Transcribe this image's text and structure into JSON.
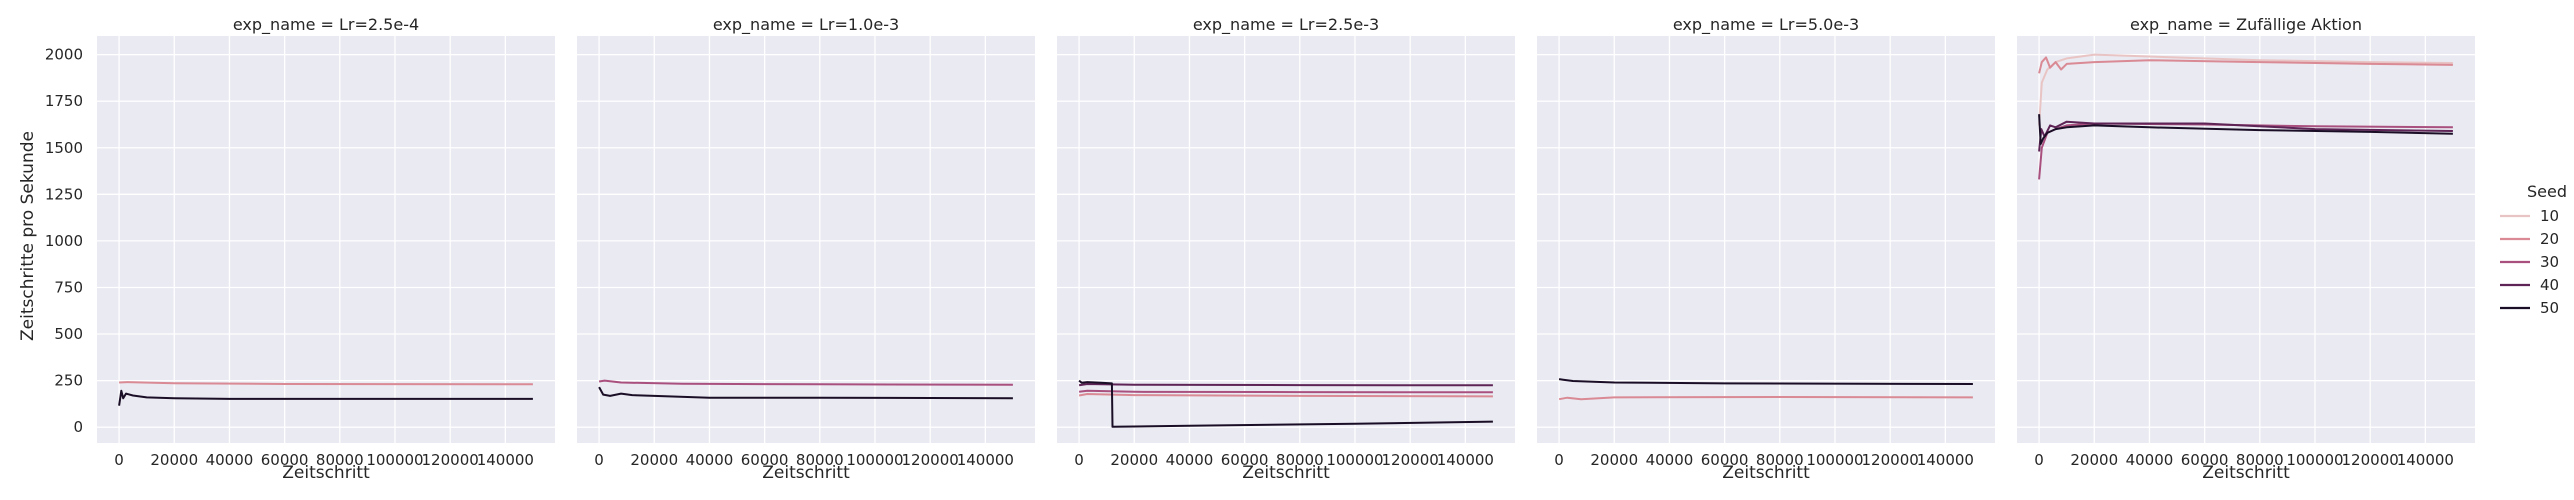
{
  "figure": {
    "ylabel": "Zeitschritte pro Sekunde",
    "xlabel": "Zeitschritt"
  },
  "legend": {
    "title": "Seed",
    "entries": [
      {
        "label": "10",
        "color": "#e9c4c4"
      },
      {
        "label": "20",
        "color": "#d98a94"
      },
      {
        "label": "30",
        "color": "#a9507f"
      },
      {
        "label": "40",
        "color": "#5e2456"
      },
      {
        "label": "50",
        "color": "#1a0e26"
      }
    ]
  },
  "chart_data": [
    {
      "type": "line",
      "title": "exp_name = Lr=2.5e-4",
      "xlabel": "Zeitschritt",
      "ylabel": "Zeitschritte pro Sekunde",
      "xlim": [
        -8000,
        158000
      ],
      "ylim": [
        -85,
        2100
      ],
      "xticks": [
        0,
        20000,
        40000,
        60000,
        80000,
        100000,
        120000,
        140000
      ],
      "yticks": [
        0,
        250,
        500,
        750,
        1000,
        1250,
        1500,
        1750,
        2000
      ],
      "series": [
        {
          "name": "20",
          "x": [
            0,
            3000,
            20000,
            60000,
            150000
          ],
          "y": [
            240,
            242,
            236,
            232,
            230
          ]
        },
        {
          "name": "50",
          "x": [
            0,
            800,
            1500,
            2500,
            5000,
            10000,
            20000,
            40000,
            80000,
            150000
          ],
          "y": [
            115,
            195,
            155,
            180,
            170,
            160,
            155,
            152,
            152,
            152
          ]
        }
      ]
    },
    {
      "type": "line",
      "title": "exp_name = Lr=1.0e-3",
      "xlabel": "Zeitschritt",
      "ylabel": "",
      "xlim": [
        -8000,
        158000
      ],
      "ylim": [
        -85,
        2100
      ],
      "xticks": [
        0,
        20000,
        40000,
        60000,
        80000,
        100000,
        120000,
        140000
      ],
      "yticks": [
        0,
        250,
        500,
        750,
        1000,
        1250,
        1500,
        1750,
        2000
      ],
      "series": [
        {
          "name": "30",
          "x": [
            0,
            2000,
            8000,
            30000,
            80000,
            150000
          ],
          "y": [
            245,
            250,
            240,
            233,
            230,
            228
          ]
        },
        {
          "name": "50",
          "x": [
            0,
            1500,
            4000,
            8000,
            12000,
            20000,
            40000,
            80000,
            150000
          ],
          "y": [
            215,
            175,
            168,
            180,
            172,
            168,
            158,
            158,
            155
          ]
        }
      ]
    },
    {
      "type": "line",
      "title": "exp_name = Lr=2.5e-3",
      "xlabel": "Zeitschritt",
      "ylabel": "",
      "xlim": [
        -8000,
        158000
      ],
      "ylim": [
        -85,
        2100
      ],
      "xticks": [
        0,
        20000,
        40000,
        60000,
        80000,
        100000,
        120000,
        140000
      ],
      "yticks": [
        0,
        250,
        500,
        750,
        1000,
        1250,
        1500,
        1750,
        2000
      ],
      "series": [
        {
          "name": "20",
          "x": [
            0,
            3000,
            20000,
            80000,
            150000
          ],
          "y": [
            170,
            178,
            172,
            168,
            165
          ]
        },
        {
          "name": "30",
          "x": [
            0,
            3000,
            20000,
            80000,
            150000
          ],
          "y": [
            190,
            195,
            190,
            188,
            187
          ]
        },
        {
          "name": "40",
          "x": [
            0,
            3000,
            20000,
            80000,
            150000
          ],
          "y": [
            225,
            232,
            228,
            226,
            225
          ]
        },
        {
          "name": "50",
          "x": [
            0,
            1000,
            3000,
            8000,
            11900,
            12100,
            40000,
            100000,
            150000
          ],
          "y": [
            250,
            238,
            242,
            238,
            235,
            2,
            8,
            18,
            30
          ]
        }
      ]
    },
    {
      "type": "line",
      "title": "exp_name = Lr=5.0e-3",
      "xlabel": "Zeitschritt",
      "ylabel": "",
      "xlim": [
        -8000,
        158000
      ],
      "ylim": [
        -85,
        2100
      ],
      "xticks": [
        0,
        20000,
        40000,
        60000,
        80000,
        100000,
        120000,
        140000
      ],
      "yticks": [
        0,
        250,
        500,
        750,
        1000,
        1250,
        1500,
        1750,
        2000
      ],
      "series": [
        {
          "name": "20",
          "x": [
            0,
            3000,
            8000,
            20000,
            80000,
            150000
          ],
          "y": [
            150,
            158,
            150,
            160,
            162,
            160
          ]
        },
        {
          "name": "50",
          "x": [
            0,
            1500,
            5000,
            20000,
            60000,
            150000
          ],
          "y": [
            258,
            255,
            248,
            240,
            235,
            232
          ]
        }
      ]
    },
    {
      "type": "line",
      "title": "exp_name = Zufällige Aktion",
      "xlabel": "Zeitschritt",
      "ylabel": "",
      "xlim": [
        -8000,
        158000
      ],
      "ylim": [
        -85,
        2100
      ],
      "xticks": [
        0,
        20000,
        40000,
        60000,
        80000,
        100000,
        120000,
        140000
      ],
      "yticks": [
        0,
        250,
        500,
        750,
        1000,
        1250,
        1500,
        1750,
        2000
      ],
      "series": [
        {
          "name": "10",
          "x": [
            0,
            1000,
            3000,
            6000,
            10000,
            20000,
            40000,
            80000,
            120000,
            150000
          ],
          "y": [
            1620,
            1850,
            1920,
            1960,
            1980,
            2000,
            1990,
            1970,
            1960,
            1955
          ]
        },
        {
          "name": "20",
          "x": [
            0,
            1000,
            2500,
            4000,
            6000,
            8000,
            10000,
            20000,
            40000,
            80000,
            120000,
            150000
          ],
          "y": [
            1900,
            1960,
            1985,
            1930,
            1960,
            1920,
            1950,
            1960,
            1970,
            1960,
            1950,
            1945
          ]
        },
        {
          "name": "30",
          "x": [
            0,
            1000,
            3000,
            6000,
            10000,
            20000,
            60000,
            100000,
            150000
          ],
          "y": [
            1330,
            1500,
            1580,
            1600,
            1620,
            1630,
            1625,
            1615,
            1610
          ]
        },
        {
          "name": "40",
          "x": [
            0,
            800,
            2000,
            4000,
            6000,
            10000,
            20000,
            60000,
            100000,
            150000
          ],
          "y": [
            1480,
            1600,
            1560,
            1620,
            1610,
            1640,
            1630,
            1630,
            1600,
            1590
          ]
        },
        {
          "name": "50",
          "x": [
            0,
            600,
            1500,
            3000,
            6000,
            10000,
            20000,
            40000,
            80000,
            120000,
            150000
          ],
          "y": [
            1680,
            1520,
            1550,
            1580,
            1600,
            1610,
            1620,
            1610,
            1595,
            1585,
            1575
          ]
        }
      ]
    }
  ]
}
